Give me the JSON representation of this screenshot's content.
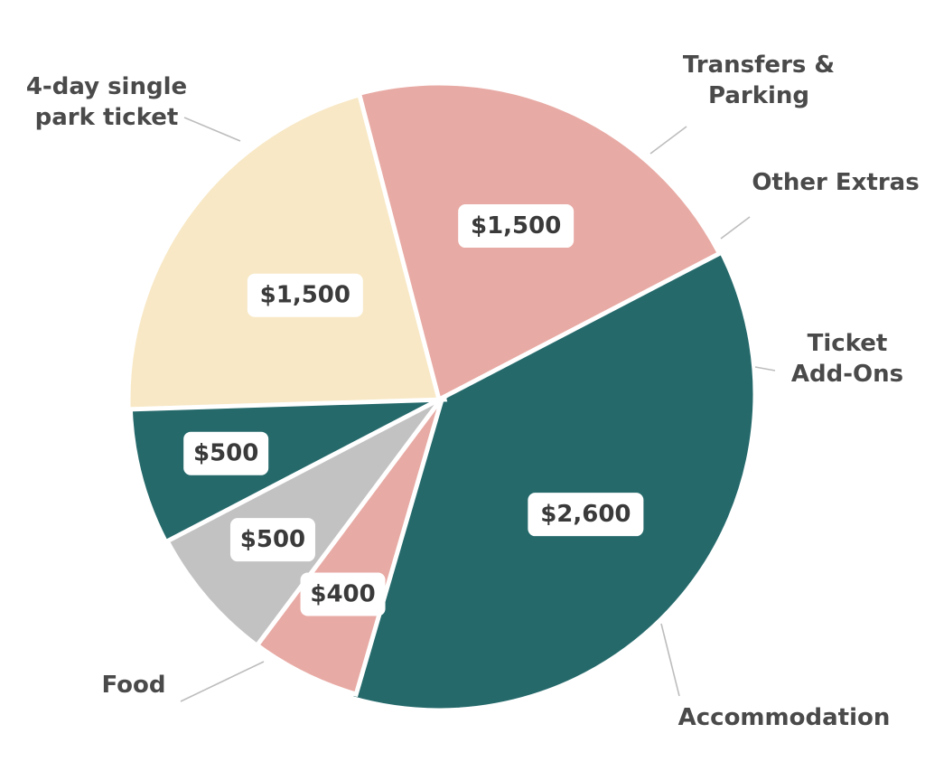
{
  "chart_data": {
    "type": "pie",
    "categories": [
      "4-day single park ticket",
      "Transfers & Parking",
      "Other Extras",
      "Ticket Add-Ons",
      "Accommodation",
      "Food"
    ],
    "values": [
      2600,
      400,
      500,
      500,
      1500,
      1500
    ],
    "value_labels": [
      "$2,600",
      "$400",
      "$500",
      "$500",
      "$1,500",
      "$1,500"
    ],
    "category_label_lines": [
      [
        "4-day single",
        "park ticket"
      ],
      [
        "Transfers &",
        "Parking"
      ],
      [
        "Other Extras"
      ],
      [
        "Ticket",
        "Add-Ons"
      ],
      [
        "Accommodation"
      ],
      [
        "Food"
      ]
    ],
    "colors": [
      "#25696b",
      "#e8aaa4",
      "#c2c2c2",
      "#25696b",
      "#f8e8c5",
      "#e8aaa4"
    ],
    "legend": "none"
  }
}
